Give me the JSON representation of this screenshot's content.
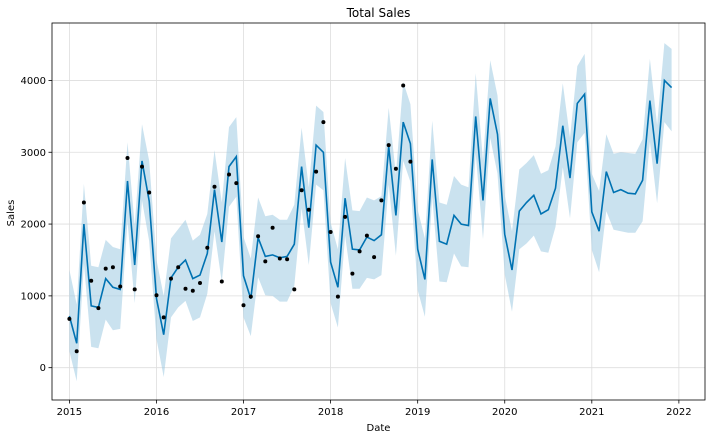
{
  "chart_data": {
    "type": "line",
    "title": "Total Sales",
    "xlabel": "Date",
    "ylabel": "Sales",
    "xlim": [
      2014.8,
      2022.3
    ],
    "ylim": [
      -450,
      4800
    ],
    "grid": true,
    "x_ticks": [
      2015,
      2016,
      2017,
      2018,
      2019,
      2020,
      2021,
      2022
    ],
    "y_ticks": [
      0,
      1000,
      2000,
      3000,
      4000
    ],
    "colors": {
      "forecast": "#0072B2",
      "band": "#9ecae1",
      "points": "#000000",
      "grid": "#dddddd"
    },
    "forecast": {
      "x": [
        2015.0,
        2015.0833,
        2015.1667,
        2015.25,
        2015.3333,
        2015.4167,
        2015.5,
        2015.5833,
        2015.6667,
        2015.75,
        2015.8333,
        2015.9167,
        2016.0,
        2016.0833,
        2016.1667,
        2016.25,
        2016.3333,
        2016.4167,
        2016.5,
        2016.5833,
        2016.6667,
        2016.75,
        2016.8333,
        2016.9167,
        2017.0,
        2017.0833,
        2017.1667,
        2017.25,
        2017.3333,
        2017.4167,
        2017.5,
        2017.5833,
        2017.6667,
        2017.75,
        2017.8333,
        2017.9167,
        2018.0,
        2018.0833,
        2018.1667,
        2018.25,
        2018.3333,
        2018.4167,
        2018.5,
        2018.5833,
        2018.6667,
        2018.75,
        2018.8333,
        2018.9167,
        2019.0,
        2019.0833,
        2019.1667,
        2019.25,
        2019.3333,
        2019.4167,
        2019.5,
        2019.5833,
        2019.6667,
        2019.75,
        2019.8333,
        2019.9167,
        2020.0,
        2020.0833,
        2020.1667,
        2020.25,
        2020.3333,
        2020.4167,
        2020.5,
        2020.5833,
        2020.6667,
        2020.75,
        2020.8333,
        2020.9167,
        2021.0,
        2021.0833,
        2021.1667,
        2021.25,
        2021.3333,
        2021.4167,
        2021.5,
        2021.5833,
        2021.6667,
        2021.75,
        2021.8333,
        2021.9167
      ],
      "yhat": [
        720,
        340,
        2000,
        860,
        840,
        1240,
        1120,
        1090,
        2600,
        1430,
        2880,
        2320,
        960,
        460,
        1250,
        1400,
        1500,
        1240,
        1290,
        1590,
        2480,
        1750,
        2800,
        2940,
        1280,
        960,
        1810,
        1550,
        1570,
        1530,
        1550,
        1720,
        2800,
        1950,
        3100,
        3000,
        1470,
        1120,
        2360,
        1650,
        1640,
        1820,
        1770,
        1850,
        3080,
        2120,
        3420,
        3120,
        1650,
        1230,
        2900,
        1760,
        1720,
        2120,
        2000,
        1980,
        3500,
        2330,
        3750,
        3250,
        1860,
        1360,
        2180,
        2300,
        2400,
        2140,
        2200,
        2500,
        3370,
        2640,
        3680,
        3810,
        2170,
        1900,
        2730,
        2440,
        2480,
        2430,
        2420,
        2610,
        3720,
        2840,
        4000,
        3900
      ],
      "yhat_lower": [
        230,
        -190,
        1450,
        290,
        270,
        670,
        520,
        540,
        2040,
        900,
        2330,
        1760,
        400,
        -130,
        700,
        840,
        930,
        650,
        700,
        1030,
        1900,
        1190,
        2240,
        2380,
        700,
        440,
        1260,
        1010,
        1000,
        920,
        920,
        1140,
        2220,
        1430,
        2550,
        2470,
        900,
        560,
        1840,
        1100,
        1100,
        1250,
        1230,
        1290,
        2550,
        1560,
        2880,
        2590,
        1080,
        710,
        2380,
        1200,
        1190,
        1590,
        1410,
        1400,
        2980,
        1790,
        3200,
        2700,
        1300,
        780,
        1650,
        1730,
        1840,
        1620,
        1600,
        1960,
        2790,
        2080,
        3140,
        3270,
        1640,
        1330,
        2180,
        1920,
        1900,
        1880,
        1880,
        2040,
        3150,
        2290,
        3420,
        3290
      ],
      "yhat_upper": [
        1360,
        880,
        2560,
        1420,
        1400,
        1780,
        1680,
        1650,
        3140,
        1980,
        3390,
        2880,
        1500,
        1000,
        1800,
        1930,
        2060,
        1770,
        1850,
        2140,
        3030,
        2300,
        3350,
        3490,
        1820,
        1520,
        2370,
        2110,
        2130,
        2060,
        2060,
        2270,
        3340,
        2510,
        3650,
        3560,
        2020,
        1650,
        2920,
        2190,
        2180,
        2370,
        2330,
        2390,
        3620,
        2690,
        3980,
        3670,
        2200,
        1800,
        3440,
        2300,
        2270,
        2670,
        2550,
        2510,
        4100,
        2890,
        4280,
        3790,
        2400,
        1900,
        2760,
        2850,
        2960,
        2700,
        2750,
        3080,
        3960,
        3200,
        4200,
        4370,
        2700,
        2460,
        3250,
        2980,
        3000,
        2990,
        2980,
        3180,
        4300,
        3380,
        4520,
        4440
      ]
    },
    "observed": {
      "x": [
        2015.0,
        2015.0833,
        2015.1667,
        2015.25,
        2015.3333,
        2015.4167,
        2015.5,
        2015.5833,
        2015.6667,
        2015.75,
        2015.8333,
        2015.9167,
        2016.0,
        2016.0833,
        2016.1667,
        2016.25,
        2016.3333,
        2016.4167,
        2016.5,
        2016.5833,
        2016.6667,
        2016.75,
        2016.8333,
        2016.9167,
        2017.0,
        2017.0833,
        2017.1667,
        2017.25,
        2017.3333,
        2017.4167,
        2017.5,
        2017.5833,
        2017.6667,
        2017.75,
        2017.8333,
        2017.9167,
        2018.0,
        2018.0833,
        2018.1667,
        2018.25,
        2018.3333,
        2018.4167,
        2018.5,
        2018.5833,
        2018.6667,
        2018.75,
        2018.8333,
        2018.9167
      ],
      "y": [
        680,
        230,
        2300,
        1210,
        830,
        1380,
        1400,
        1130,
        2920,
        1090,
        2800,
        2440,
        1010,
        700,
        1240,
        1400,
        1100,
        1070,
        1180,
        1670,
        2520,
        1200,
        2690,
        2570,
        870,
        990,
        1830,
        1480,
        1950,
        1520,
        1510,
        1090,
        2470,
        2200,
        2730,
        3420,
        1890,
        990,
        2100,
        1310,
        1620,
        1840,
        1540,
        2330,
        3100,
        2770,
        3930,
        2870
      ]
    }
  }
}
